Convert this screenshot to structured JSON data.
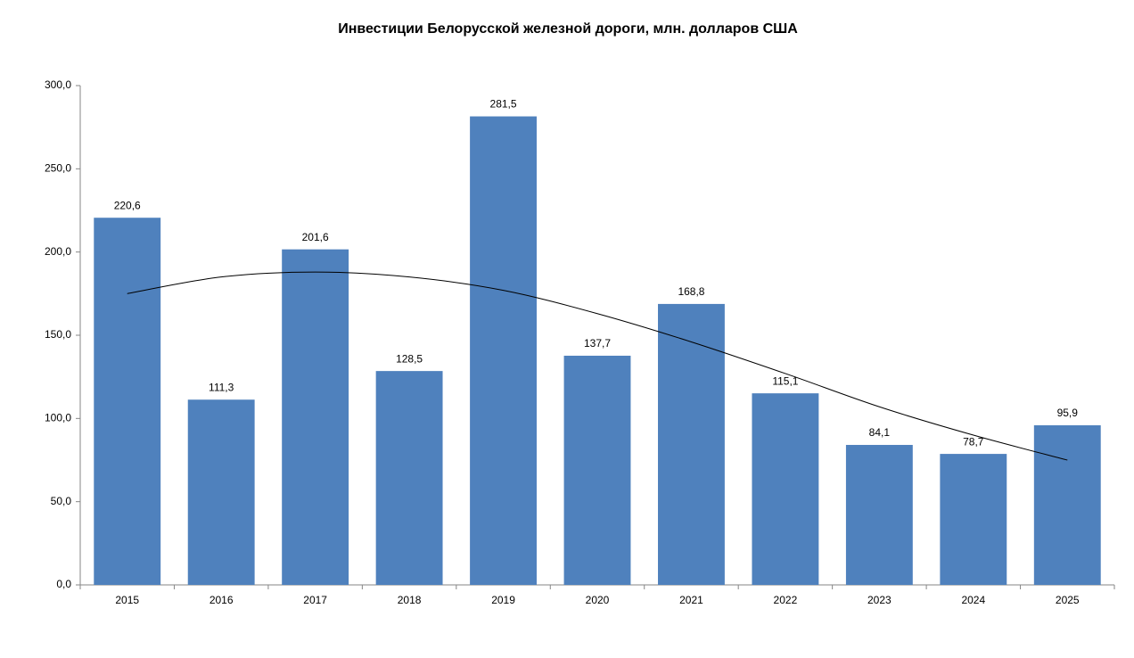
{
  "chart_data": {
    "type": "bar",
    "title": "Инвестиции Белорусской железной дороги, млн. долларов США",
    "categories": [
      "2015",
      "2016",
      "2017",
      "2018",
      "2019",
      "2020",
      "2021",
      "2022",
      "2023",
      "2024",
      "2025"
    ],
    "values": [
      220.6,
      111.3,
      201.6,
      128.5,
      281.5,
      137.7,
      168.8,
      115.1,
      84.1,
      78.7,
      95.9
    ],
    "value_labels": [
      "220,6",
      "111,3",
      "201,6",
      "128,5",
      "281,5",
      "137,7",
      "168,8",
      "115,1",
      "84,1",
      "78,7",
      "95,9"
    ],
    "color": "#4f81bd",
    "trendline": {
      "values": [
        175,
        185,
        188,
        185,
        177,
        163,
        146,
        127,
        107,
        90,
        75
      ],
      "color": "#000000"
    },
    "ylim": [
      0,
      300
    ],
    "yticks": [
      {
        "value": 0,
        "label": "0,0"
      },
      {
        "value": 50,
        "label": "50,0"
      },
      {
        "value": 100,
        "label": "100,0"
      },
      {
        "value": 150,
        "label": "150,0"
      },
      {
        "value": 200,
        "label": "200,0"
      },
      {
        "value": 250,
        "label": "250,0"
      },
      {
        "value": 300,
        "label": "300,0"
      }
    ],
    "grid": false
  }
}
